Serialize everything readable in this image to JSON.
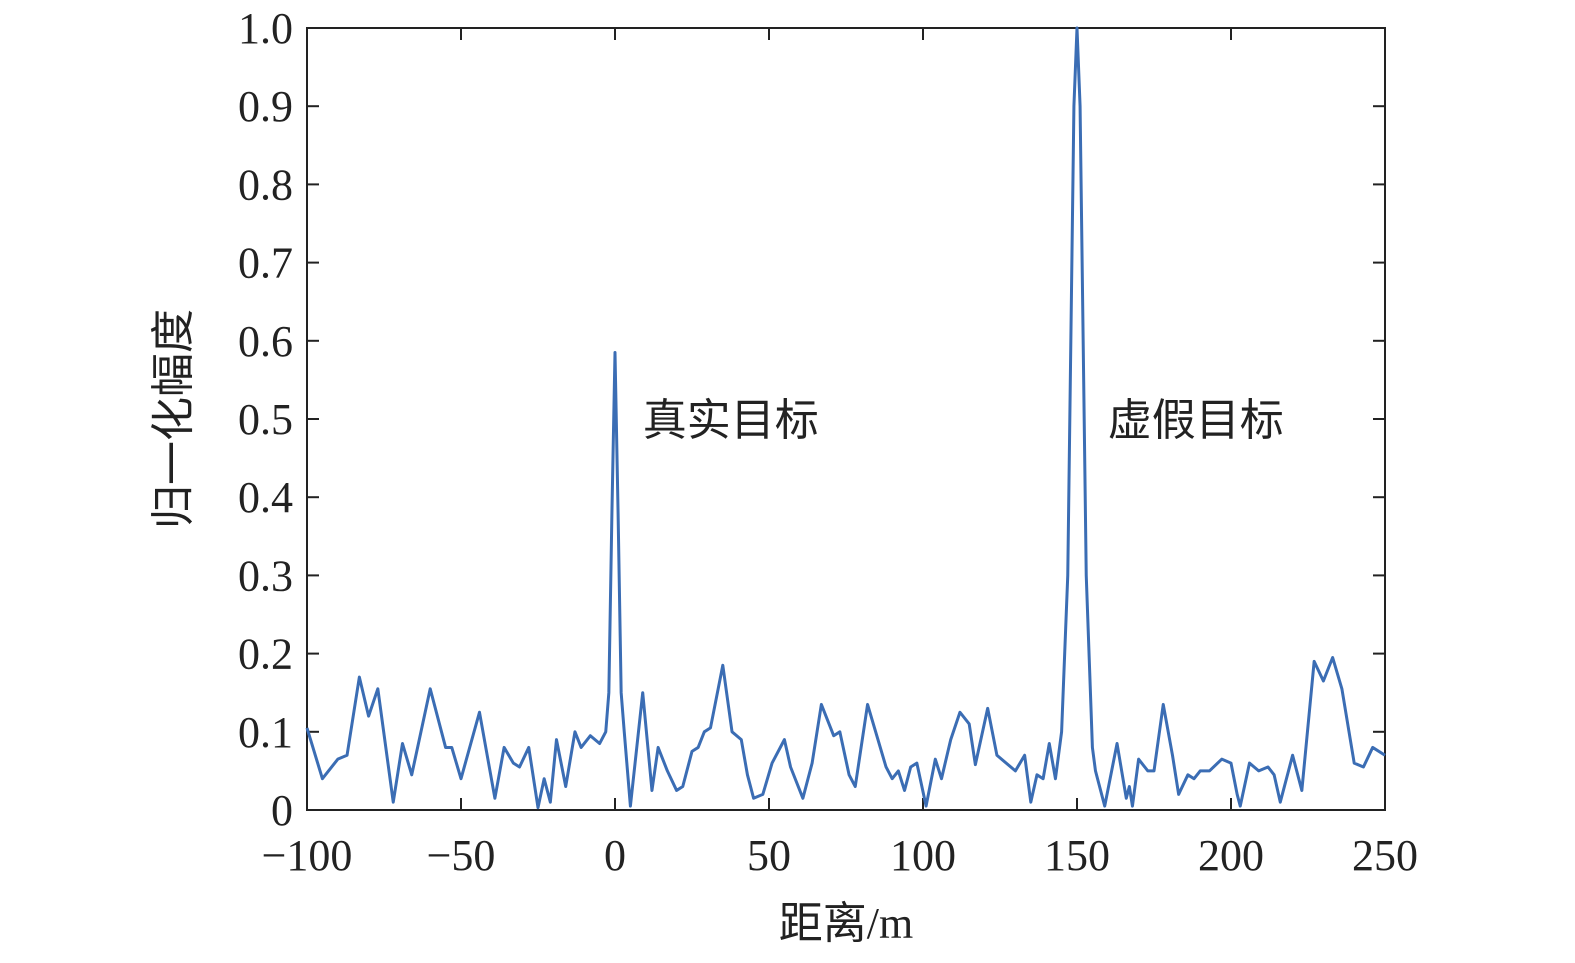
{
  "chart_data": {
    "type": "line",
    "xlabel": "距离/m",
    "ylabel": "归一化幅度",
    "annotations": [
      {
        "text": "真实目标",
        "x": 9,
        "y": 0.5
      },
      {
        "text": "虚假目标",
        "x": 160,
        "y": 0.5
      }
    ],
    "xlim": [
      -100,
      250
    ],
    "ylim": [
      0,
      1
    ],
    "xticks": [
      {
        "value": -100,
        "label": "−100"
      },
      {
        "value": -50,
        "label": "−50"
      },
      0,
      50,
      100,
      150,
      200,
      250
    ],
    "yticks": [
      0,
      0.1,
      0.2,
      0.3,
      0.4,
      0.5,
      0.6,
      0.7,
      0.8,
      0.9,
      {
        "value": 1,
        "label": "1.0"
      }
    ],
    "x": [
      -100,
      -95,
      -90,
      -87,
      -83,
      -80,
      -77,
      -72,
      -69,
      -66,
      -60,
      -55,
      -53,
      -50,
      -44,
      -39,
      -36,
      -33,
      -31,
      -28,
      -25,
      -23,
      -21,
      -19,
      -16,
      -13,
      -11,
      -8,
      -5,
      -3,
      -2,
      -1,
      0,
      1,
      2,
      3,
      5,
      9,
      12,
      14,
      17,
      20,
      22,
      25,
      27,
      29,
      31,
      35,
      38,
      41,
      43,
      45,
      48,
      51,
      55,
      57,
      61,
      64,
      67,
      71,
      73,
      76,
      78,
      82,
      85,
      88,
      90,
      92,
      94,
      96,
      98,
      101,
      104,
      106,
      109,
      112,
      115,
      117,
      121,
      124,
      130,
      133,
      135,
      137,
      139,
      141,
      143,
      145,
      147,
      148,
      149,
      150,
      151,
      152,
      153,
      155,
      156,
      159,
      163,
      166,
      167,
      168,
      170,
      173,
      175,
      178,
      181,
      183,
      186,
      188,
      190,
      193,
      197,
      200,
      202,
      203,
      206,
      209,
      212,
      214,
      216,
      219,
      220,
      223,
      227,
      230,
      233,
      236,
      240,
      243,
      246,
      250
    ],
    "series": [
      {
        "name": "幅度",
        "color": "#3b6db4",
        "values": [
          0.105,
          0.04,
          0.065,
          0.07,
          0.17,
          0.12,
          0.155,
          0.01,
          0.085,
          0.045,
          0.155,
          0.08,
          0.08,
          0.04,
          0.125,
          0.015,
          0.08,
          0.06,
          0.055,
          0.08,
          0.003,
          0.04,
          0.01,
          0.09,
          0.03,
          0.1,
          0.08,
          0.095,
          0.085,
          0.1,
          0.15,
          0.38,
          0.585,
          0.38,
          0.15,
          0.1,
          0.005,
          0.15,
          0.025,
          0.08,
          0.05,
          0.025,
          0.03,
          0.075,
          0.08,
          0.1,
          0.105,
          0.185,
          0.1,
          0.09,
          0.045,
          0.015,
          0.02,
          0.06,
          0.09,
          0.055,
          0.015,
          0.06,
          0.135,
          0.095,
          0.1,
          0.045,
          0.03,
          0.135,
          0.095,
          0.055,
          0.04,
          0.05,
          0.025,
          0.055,
          0.06,
          0.005,
          0.065,
          0.04,
          0.09,
          0.125,
          0.11,
          0.058,
          0.13,
          0.07,
          0.05,
          0.07,
          0.01,
          0.045,
          0.04,
          0.085,
          0.04,
          0.1,
          0.3,
          0.6,
          0.9,
          1.0,
          0.9,
          0.6,
          0.3,
          0.08,
          0.05,
          0.005,
          0.085,
          0.015,
          0.03,
          0.005,
          0.065,
          0.05,
          0.05,
          0.135,
          0.07,
          0.02,
          0.045,
          0.04,
          0.05,
          0.05,
          0.065,
          0.06,
          0.02,
          0.005,
          0.06,
          0.05,
          0.055,
          0.045,
          0.01,
          0.055,
          0.07,
          0.025,
          0.19,
          0.165,
          0.195,
          0.155,
          0.06,
          0.055,
          0.08,
          0.07
        ]
      }
    ]
  }
}
